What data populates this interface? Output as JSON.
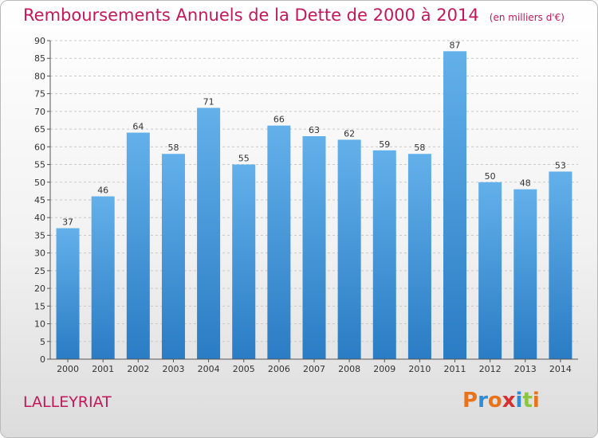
{
  "header": {
    "title": "Remboursements Annuels de la Dette de 2000 à 2014",
    "subtitle": "(en milliers d'€)"
  },
  "footer": {
    "place": "LALLEYRIAT",
    "logo": "Proxiti",
    "logo_colors": [
      "#e8731a",
      "#2e8bd8",
      "#e8731a",
      "#d62f2f",
      "#2e8bd8",
      "#8cc63f",
      "#e8731a"
    ]
  },
  "colors": {
    "title": "#c2185b",
    "bar_light": "#63b0ea",
    "bar_dark": "#2a7cc4",
    "grid": "#c8c8c8",
    "axis": "#555555"
  },
  "chart_data": {
    "type": "bar",
    "categories": [
      "2000",
      "2001",
      "2002",
      "2003",
      "2004",
      "2005",
      "2006",
      "2007",
      "2008",
      "2009",
      "2010",
      "2011",
      "2012",
      "2013",
      "2014"
    ],
    "values": [
      37,
      46,
      64,
      58,
      71,
      55,
      66,
      63,
      62,
      59,
      58,
      87,
      50,
      48,
      53
    ],
    "title": "Remboursements Annuels de la Dette de 2000 à 2014",
    "ylim": [
      0,
      90
    ],
    "yticks": [
      0,
      5,
      10,
      15,
      20,
      25,
      30,
      35,
      40,
      45,
      50,
      55,
      60,
      65,
      70,
      75,
      80,
      85,
      90
    ],
    "grid": "horizontal dashed",
    "data_labels": true
  }
}
